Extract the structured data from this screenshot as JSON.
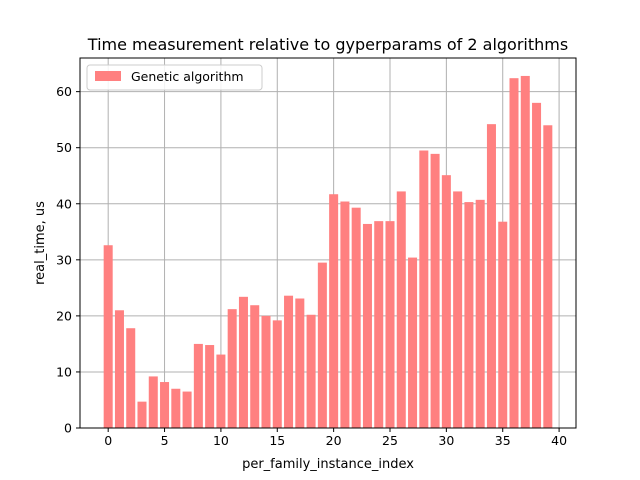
{
  "chart_data": {
    "type": "bar",
    "title": "Time measurement relative to gyperparams of 2 algorithms",
    "xlabel": "per_family_instance_index",
    "ylabel": "real_time, us",
    "xlim": [
      -2.5,
      41.5
    ],
    "ylim": [
      0,
      66
    ],
    "xticks": [
      0,
      5,
      10,
      15,
      20,
      25,
      30,
      35,
      40
    ],
    "yticks": [
      0,
      10,
      20,
      30,
      40,
      50,
      60
    ],
    "grid": true,
    "legend_position": "top-left",
    "bar_color": "#ff8080",
    "series": [
      {
        "name": "Genetic algorithm",
        "x": [
          0,
          1,
          2,
          3,
          4,
          5,
          6,
          7,
          8,
          9,
          10,
          11,
          12,
          13,
          14,
          15,
          16,
          17,
          18,
          19,
          20,
          21,
          22,
          23,
          24,
          25,
          26,
          27,
          28,
          29,
          30,
          31,
          32,
          33,
          34,
          35,
          36,
          37,
          38,
          39
        ],
        "values": [
          32.6,
          21.0,
          17.8,
          4.7,
          9.2,
          8.2,
          7.0,
          6.5,
          15.0,
          14.8,
          13.1,
          21.2,
          23.4,
          21.9,
          20.0,
          19.2,
          23.6,
          23.1,
          20.2,
          29.5,
          41.7,
          40.4,
          39.3,
          36.4,
          36.9,
          36.9,
          42.2,
          30.4,
          49.5,
          48.9,
          45.1,
          42.2,
          40.3,
          40.7,
          54.2,
          36.8,
          62.4,
          62.8,
          58.0,
          54.0
        ]
      }
    ]
  }
}
